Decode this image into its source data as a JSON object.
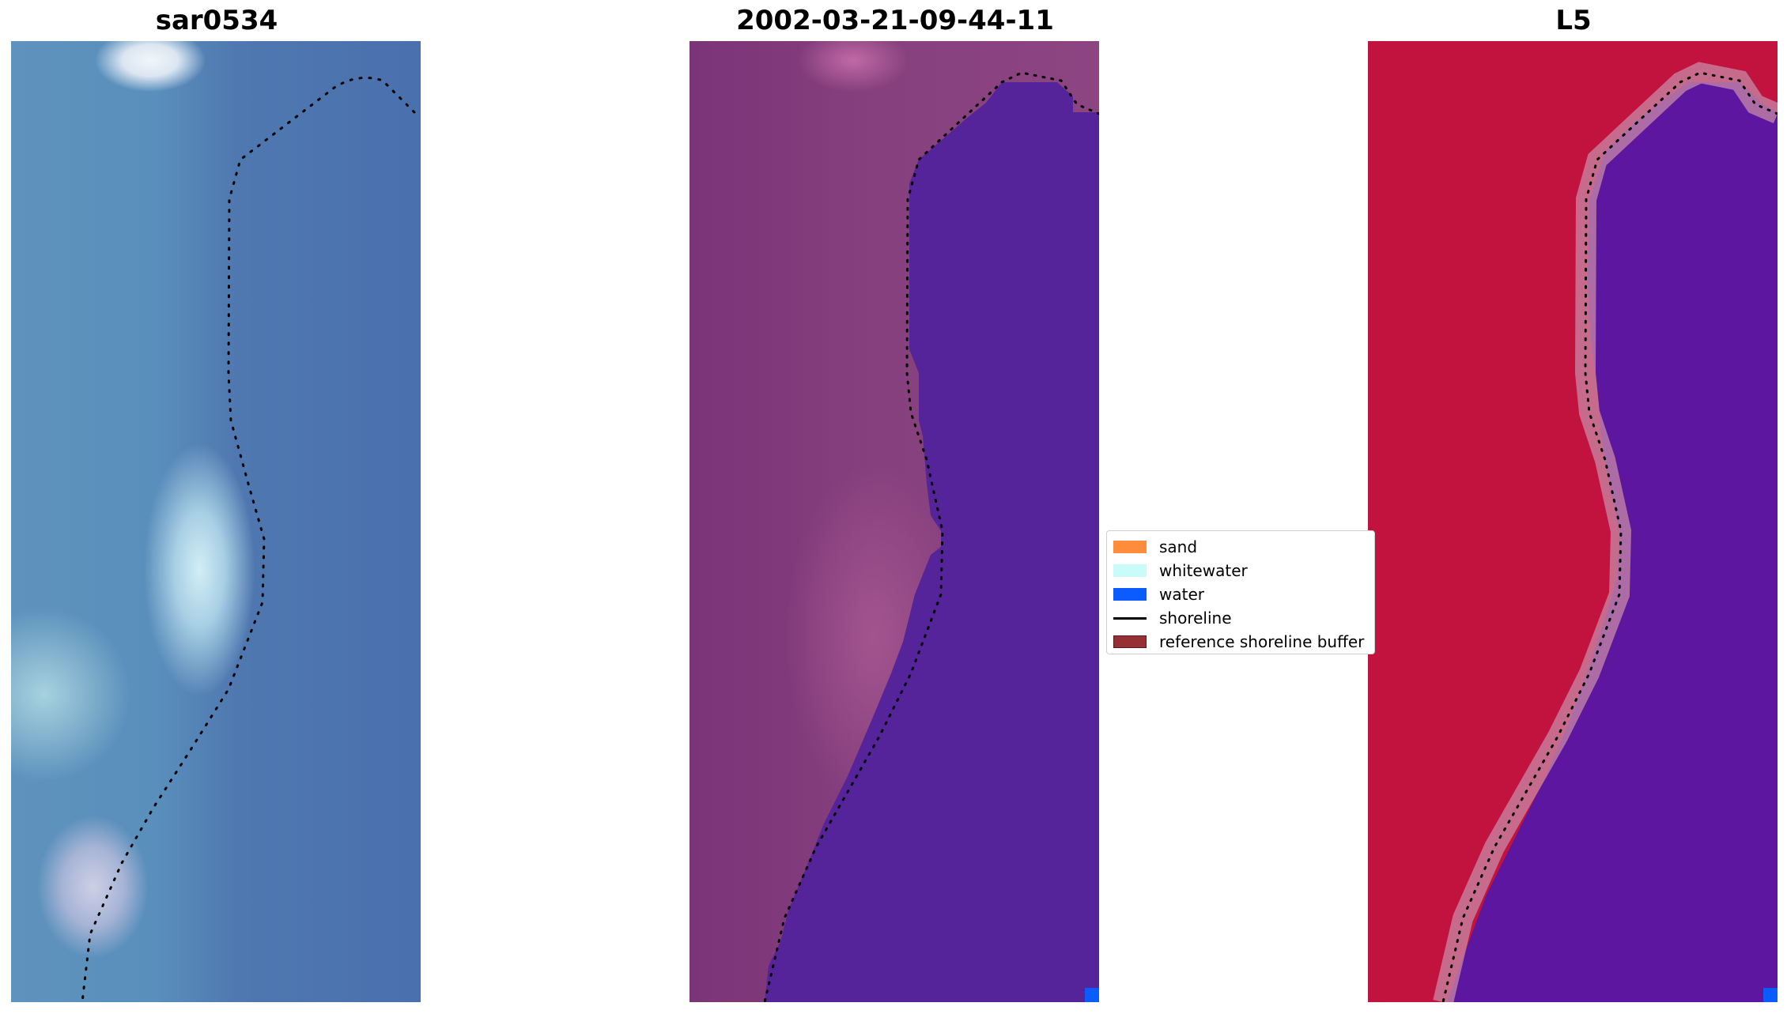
{
  "panels": [
    {
      "title": "sar0534"
    },
    {
      "title": "2002-03-21-09-44-11"
    },
    {
      "title": "L5"
    }
  ],
  "legend": {
    "items": [
      {
        "label": "sand",
        "color": "#ff8c3a",
        "kind": "patch"
      },
      {
        "label": "whitewater",
        "color": "#c9fbfb",
        "kind": "patch"
      },
      {
        "label": "water",
        "color": "#0b5cff",
        "kind": "patch"
      },
      {
        "label": "shoreline",
        "color": "#000000",
        "kind": "line"
      },
      {
        "label": "reference shoreline buffer",
        "color": "#973034",
        "kind": "patch"
      }
    ]
  },
  "colors": {
    "classified_water": "#55249a",
    "classified_land": "#86407e",
    "index_land": "#c2133e",
    "index_water": "#5c16a0"
  }
}
